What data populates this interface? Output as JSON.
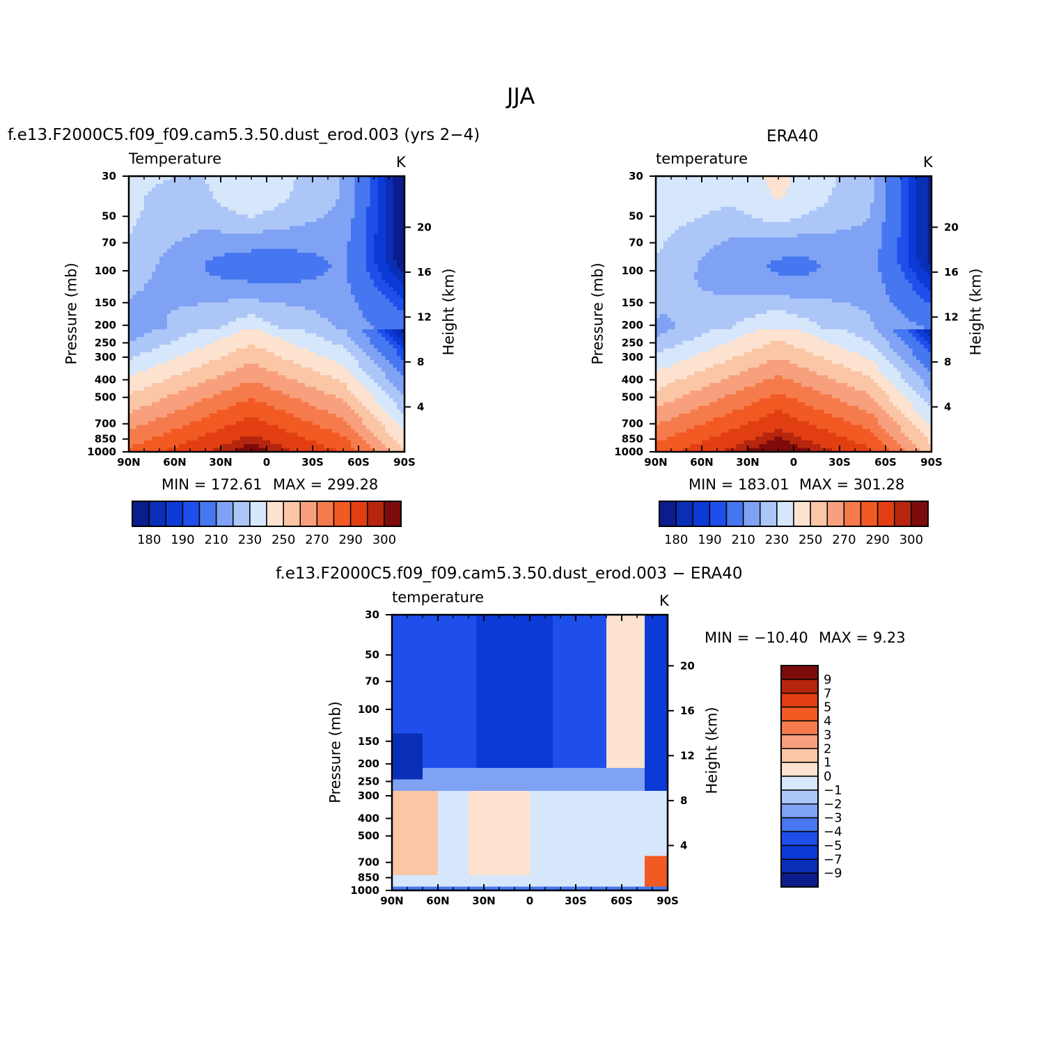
{
  "figure": {
    "title": "JJA",
    "colors": [
      "#0b1c8c",
      "#0a2fb7",
      "#0c3ad6",
      "#1e4fea",
      "#4677f0",
      "#7fa2f4",
      "#adc6f8",
      "#d6e6fb",
      "#fde3cf",
      "#fbc6a6",
      "#f8a07d",
      "#f67b4c",
      "#f25a23",
      "#e13f12",
      "#b6260e",
      "#7e0b0b"
    ],
    "diff_colors": [
      "#0b1c8c",
      "#0a2fb7",
      "#0c3ad6",
      "#1e4fea",
      "#4677f0",
      "#7fa2f4",
      "#adc6f8",
      "#d6e6fb",
      "#fde3cf",
      "#fbc6a6",
      "#f8a07d",
      "#f67b4c",
      "#f25a23",
      "#e13f12",
      "#b6260e",
      "#7e0b0b"
    ]
  },
  "chart_data": [
    {
      "type": "heatmap",
      "panel": "model",
      "title": "f.e13.F2000C5.f09_f09.cam5.3.50.dust_erod.003 (yrs 2−4)",
      "left_label": "Temperature",
      "right_label": "K",
      "xlabel": "",
      "ylabel": "Pressure (mb)",
      "ylabel_right": "Height (km)",
      "x_ticks": [
        "90N",
        "60N",
        "30N",
        "0",
        "30S",
        "60S",
        "90S"
      ],
      "y_ticks": [
        "30",
        "50",
        "70",
        "100",
        "150",
        "200",
        "250",
        "300",
        "400",
        "500",
        "700",
        "850",
        "1000"
      ],
      "y_ticks_right": [
        "20",
        "16",
        "12",
        "8",
        "4"
      ],
      "min_text": "MIN = 172.61",
      "max_text": "MAX = 299.28",
      "min": 172.61,
      "max": 299.28,
      "colorbar_ticks": [
        "180",
        "190",
        "210",
        "230",
        "250",
        "270",
        "290",
        "300"
      ]
    },
    {
      "type": "heatmap",
      "panel": "obs",
      "title": "ERA40",
      "left_label": "temperature",
      "right_label": "K",
      "xlabel": "",
      "ylabel": "Pressure (mb)",
      "ylabel_right": "Height (km)",
      "x_ticks": [
        "90N",
        "60N",
        "30N",
        "0",
        "30S",
        "60S",
        "90S"
      ],
      "y_ticks": [
        "30",
        "50",
        "70",
        "100",
        "150",
        "200",
        "250",
        "300",
        "400",
        "500",
        "700",
        "850",
        "1000"
      ],
      "y_ticks_right": [
        "20",
        "16",
        "12",
        "8",
        "4"
      ],
      "min_text": "MIN = 183.01",
      "max_text": "MAX = 301.28",
      "min": 183.01,
      "max": 301.28,
      "colorbar_ticks": [
        "180",
        "190",
        "210",
        "230",
        "250",
        "270",
        "290",
        "300"
      ]
    },
    {
      "type": "heatmap",
      "panel": "diff",
      "title": "f.e13.F2000C5.f09_f09.cam5.3.50.dust_erod.003 − ERA40",
      "left_label": "temperature",
      "right_label": "K",
      "xlabel": "",
      "ylabel": "Pressure (mb)",
      "ylabel_right": "Height (km)",
      "x_ticks": [
        "90N",
        "60N",
        "30N",
        "0",
        "30S",
        "60S",
        "90S"
      ],
      "y_ticks": [
        "30",
        "50",
        "70",
        "100",
        "150",
        "200",
        "250",
        "300",
        "400",
        "500",
        "700",
        "850",
        "1000"
      ],
      "y_ticks_right": [
        "20",
        "16",
        "12",
        "8",
        "4"
      ],
      "min_text": "MIN = −10.40",
      "max_text": "MAX =    9.23",
      "min": -10.4,
      "max": 9.23,
      "colorbar_ticks": [
        "9",
        "7",
        "5",
        "4",
        "3",
        "2",
        "1",
        "0",
        "−1",
        "−2",
        "−3",
        "−4",
        "−5",
        "−7",
        "−9"
      ]
    }
  ]
}
